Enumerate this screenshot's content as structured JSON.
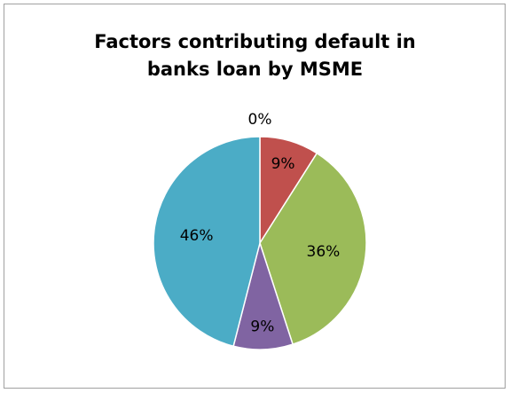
{
  "chart_data": {
    "type": "pie",
    "title": [
      "Factors contributing default in",
      "banks loan by MSME"
    ],
    "categories": [
      "",
      "",
      "",
      "",
      ""
    ],
    "values": [
      0,
      9,
      36,
      9,
      46
    ],
    "labels": [
      "0%",
      "9%",
      "36%",
      "9%",
      "46%"
    ],
    "colors": [
      "#4F81BD",
      "#C0504D",
      "#9BBB59",
      "#8064A2",
      "#4BACC6"
    ],
    "legend": "none"
  }
}
